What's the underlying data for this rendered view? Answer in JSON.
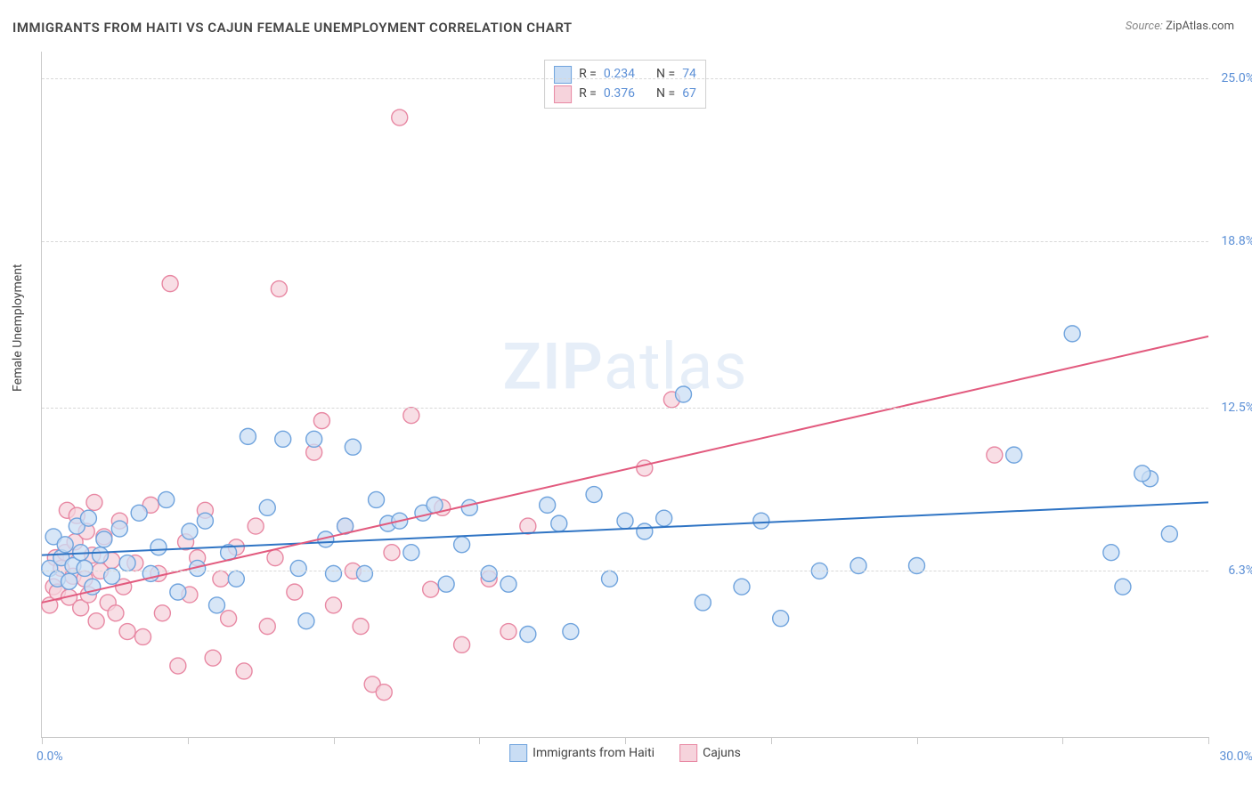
{
  "title": "IMMIGRANTS FROM HAITI VS CAJUN FEMALE UNEMPLOYMENT CORRELATION CHART",
  "source_label": "Source:",
  "source_name": "ZipAtlas.com",
  "ylabel": "Female Unemployment",
  "watermark_a": "ZIP",
  "watermark_b": "atlas",
  "chart": {
    "type": "scatter",
    "x_min": 0,
    "x_max": 30,
    "y_min": 0,
    "y_max": 26,
    "x_axis_label_min": "0.0%",
    "x_axis_label_max": "30.0%",
    "y_ticks": [
      6.3,
      12.5,
      18.8,
      25.0
    ],
    "y_tick_labels": [
      "6.3%",
      "12.5%",
      "18.8%",
      "25.0%"
    ],
    "x_tick_positions": [
      0,
      3.75,
      7.5,
      11.25,
      15,
      18.75,
      22.5,
      26.25,
      30
    ],
    "grid_color": "#d8d8d8",
    "axis_color": "#c9c9c9",
    "background_color": "#ffffff",
    "tick_label_color": "#5b8fd6",
    "marker_radius": 9,
    "marker_stroke_width": 1.4,
    "line_width": 2,
    "series_blue": {
      "label": "Immigrants from Haiti",
      "r_label": "R =",
      "r_value": "0.234",
      "n_label": "N =",
      "n_value": "74",
      "fill": "#c9ddf4",
      "stroke": "#6fa3dd",
      "line_color": "#2f74c4",
      "regression": {
        "y_at_x0": 6.9,
        "y_at_xmax": 8.9
      },
      "points": [
        [
          0.2,
          6.4
        ],
        [
          0.3,
          7.6
        ],
        [
          0.4,
          6.0
        ],
        [
          0.5,
          6.8
        ],
        [
          0.6,
          7.3
        ],
        [
          0.7,
          5.9
        ],
        [
          0.8,
          6.5
        ],
        [
          0.9,
          8.0
        ],
        [
          1.0,
          7.0
        ],
        [
          1.1,
          6.4
        ],
        [
          1.2,
          8.3
        ],
        [
          1.3,
          5.7
        ],
        [
          1.5,
          6.9
        ],
        [
          1.6,
          7.5
        ],
        [
          1.8,
          6.1
        ],
        [
          2.0,
          7.9
        ],
        [
          2.2,
          6.6
        ],
        [
          2.5,
          8.5
        ],
        [
          2.8,
          6.2
        ],
        [
          3.0,
          7.2
        ],
        [
          3.2,
          9.0
        ],
        [
          3.5,
          5.5
        ],
        [
          3.8,
          7.8
        ],
        [
          4.0,
          6.4
        ],
        [
          4.2,
          8.2
        ],
        [
          4.5,
          5.0
        ],
        [
          4.8,
          7.0
        ],
        [
          5.0,
          6.0
        ],
        [
          5.3,
          11.4
        ],
        [
          5.8,
          8.7
        ],
        [
          6.2,
          11.3
        ],
        [
          6.6,
          6.4
        ],
        [
          6.8,
          4.4
        ],
        [
          7.0,
          11.3
        ],
        [
          7.3,
          7.5
        ],
        [
          7.5,
          6.2
        ],
        [
          7.8,
          8.0
        ],
        [
          8.0,
          11.0
        ],
        [
          8.3,
          6.2
        ],
        [
          8.6,
          9.0
        ],
        [
          8.9,
          8.1
        ],
        [
          9.2,
          8.2
        ],
        [
          9.5,
          7.0
        ],
        [
          9.8,
          8.5
        ],
        [
          10.1,
          8.8
        ],
        [
          10.4,
          5.8
        ],
        [
          10.8,
          7.3
        ],
        [
          11.0,
          8.7
        ],
        [
          11.5,
          6.2
        ],
        [
          12.0,
          5.8
        ],
        [
          12.5,
          3.9
        ],
        [
          13.0,
          8.8
        ],
        [
          13.3,
          8.1
        ],
        [
          13.6,
          4.0
        ],
        [
          14.2,
          9.2
        ],
        [
          14.6,
          6.0
        ],
        [
          15.0,
          8.2
        ],
        [
          15.5,
          7.8
        ],
        [
          16.0,
          8.3
        ],
        [
          16.5,
          13.0
        ],
        [
          17.0,
          5.1
        ],
        [
          18.0,
          5.7
        ],
        [
          18.5,
          8.2
        ],
        [
          19.0,
          4.5
        ],
        [
          20.0,
          6.3
        ],
        [
          21.0,
          6.5
        ],
        [
          22.5,
          6.5
        ],
        [
          25.0,
          10.7
        ],
        [
          26.5,
          15.3
        ],
        [
          27.5,
          7.0
        ],
        [
          27.8,
          5.7
        ],
        [
          28.5,
          9.8
        ],
        [
          29.0,
          7.7
        ],
        [
          28.3,
          10.0
        ]
      ]
    },
    "series_pink": {
      "label": "Cajuns",
      "r_label": "R =",
      "r_value": "0.376",
      "n_label": "N =",
      "n_value": "67",
      "fill": "#f6d3dc",
      "stroke": "#e888a3",
      "line_color": "#e25a7e",
      "regression": {
        "y_at_x0": 5.1,
        "y_at_xmax": 15.2
      },
      "points": [
        [
          0.2,
          5.0
        ],
        [
          0.3,
          5.7
        ],
        [
          0.35,
          6.8
        ],
        [
          0.4,
          5.5
        ],
        [
          0.5,
          6.4
        ],
        [
          0.6,
          7.0
        ],
        [
          0.65,
          8.6
        ],
        [
          0.7,
          5.3
        ],
        [
          0.8,
          6.1
        ],
        [
          0.85,
          7.4
        ],
        [
          0.9,
          8.4
        ],
        [
          1.0,
          4.9
        ],
        [
          1.1,
          6.0
        ],
        [
          1.15,
          7.8
        ],
        [
          1.2,
          5.4
        ],
        [
          1.3,
          6.9
        ],
        [
          1.35,
          8.9
        ],
        [
          1.4,
          4.4
        ],
        [
          1.5,
          6.3
        ],
        [
          1.6,
          7.6
        ],
        [
          1.7,
          5.1
        ],
        [
          1.8,
          6.7
        ],
        [
          1.9,
          4.7
        ],
        [
          2.0,
          8.2
        ],
        [
          2.1,
          5.7
        ],
        [
          2.2,
          4.0
        ],
        [
          2.4,
          6.6
        ],
        [
          2.6,
          3.8
        ],
        [
          2.8,
          8.8
        ],
        [
          3.0,
          6.2
        ],
        [
          3.1,
          4.7
        ],
        [
          3.3,
          17.2
        ],
        [
          3.5,
          2.7
        ],
        [
          3.7,
          7.4
        ],
        [
          3.8,
          5.4
        ],
        [
          4.0,
          6.8
        ],
        [
          4.2,
          8.6
        ],
        [
          4.4,
          3.0
        ],
        [
          4.6,
          6.0
        ],
        [
          4.8,
          4.5
        ],
        [
          5.0,
          7.2
        ],
        [
          5.2,
          2.5
        ],
        [
          5.5,
          8.0
        ],
        [
          5.8,
          4.2
        ],
        [
          6.0,
          6.8
        ],
        [
          6.1,
          17.0
        ],
        [
          6.5,
          5.5
        ],
        [
          7.0,
          10.8
        ],
        [
          7.2,
          12.0
        ],
        [
          7.5,
          5.0
        ],
        [
          7.8,
          8.0
        ],
        [
          8.0,
          6.3
        ],
        [
          8.2,
          4.2
        ],
        [
          8.5,
          2.0
        ],
        [
          8.8,
          1.7
        ],
        [
          9.0,
          7.0
        ],
        [
          9.2,
          23.5
        ],
        [
          9.5,
          12.2
        ],
        [
          10.0,
          5.6
        ],
        [
          10.3,
          8.7
        ],
        [
          10.8,
          3.5
        ],
        [
          11.5,
          6.0
        ],
        [
          12.0,
          4.0
        ],
        [
          12.5,
          8.0
        ],
        [
          15.5,
          10.2
        ],
        [
          16.2,
          12.8
        ],
        [
          24.5,
          10.7
        ]
      ]
    }
  },
  "legend_bottom": {
    "item1": "Immigrants from Haiti",
    "item2": "Cajuns"
  }
}
